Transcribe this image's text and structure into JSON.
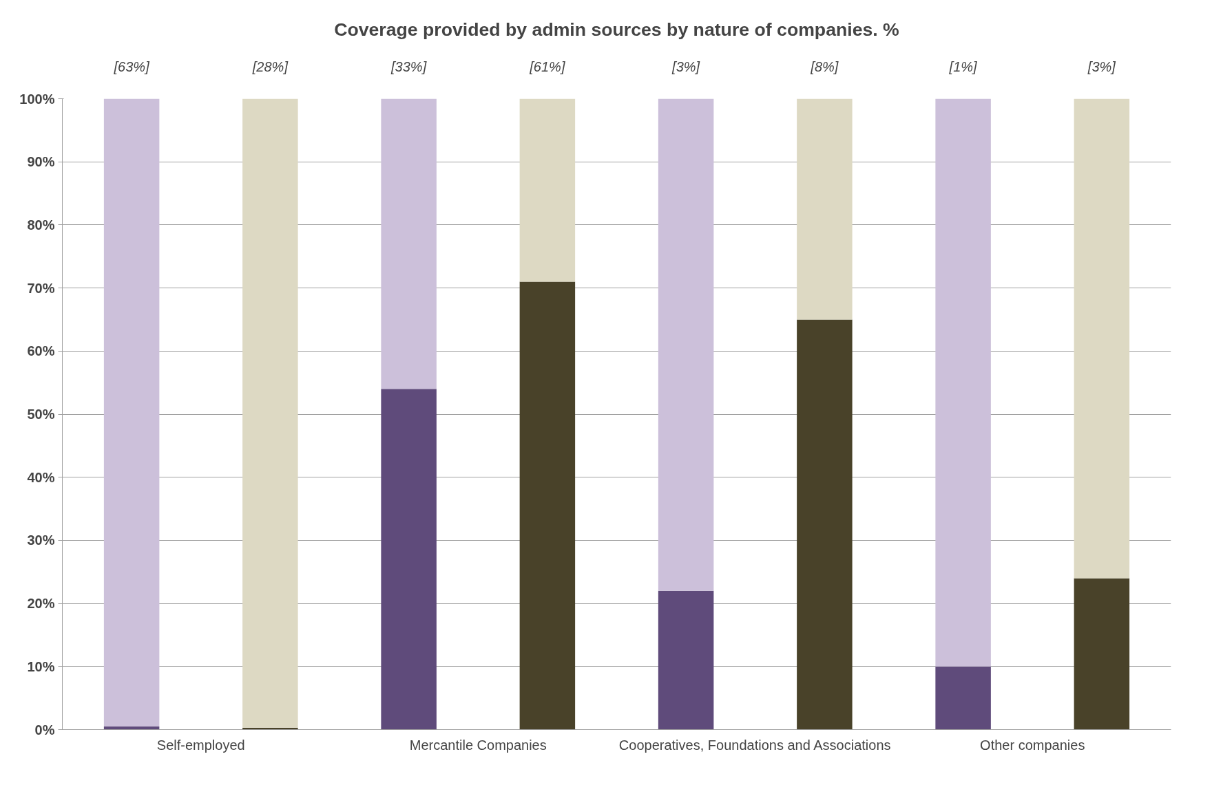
{
  "chart_data": {
    "type": "bar",
    "stacked": true,
    "title": "Coverage provided by admin sources by nature of companies. %",
    "categories": [
      "Self-employed",
      null,
      "Mercantile Companies",
      null,
      "Cooperatives, Foundations and Associations",
      null,
      "Other companies",
      null
    ],
    "series": [
      {
        "values": [
          0.5,
          0.3,
          54,
          71,
          22,
          65,
          10,
          24
        ],
        "colors": [
          "#5f4b7b",
          "#494229",
          "#5f4b7b",
          "#494229",
          "#5f4b7b",
          "#494229",
          "#5f4b7b",
          "#494229"
        ]
      },
      {
        "values": [
          99.5,
          99.7,
          46,
          29,
          78,
          35,
          90,
          76
        ],
        "colors": [
          "#ccc0da",
          "#ddd9c3",
          "#ccc0da",
          "#ddd9c3",
          "#ccc0da",
          "#ddd9c3",
          "#ccc0da",
          "#ddd9c3"
        ]
      }
    ],
    "annotations": [
      "[63%]",
      "[28%]",
      "[33%]",
      "[61%]",
      "[3%]",
      "[8%]",
      "[1%]",
      "[3%]"
    ],
    "ylim": [
      0,
      100
    ],
    "yticks": [
      {
        "value": 0,
        "label": "0%"
      },
      {
        "value": 10,
        "label": "10%"
      },
      {
        "value": 20,
        "label": "20%"
      },
      {
        "value": 30,
        "label": "30%"
      },
      {
        "value": 40,
        "label": "40%"
      },
      {
        "value": 50,
        "label": "50%"
      },
      {
        "value": 60,
        "label": "60%"
      },
      {
        "value": 70,
        "label": "70%"
      },
      {
        "value": 80,
        "label": "80%"
      },
      {
        "value": 90,
        "label": "90%"
      },
      {
        "value": 100,
        "label": "100%"
      }
    ],
    "grid": "y"
  }
}
